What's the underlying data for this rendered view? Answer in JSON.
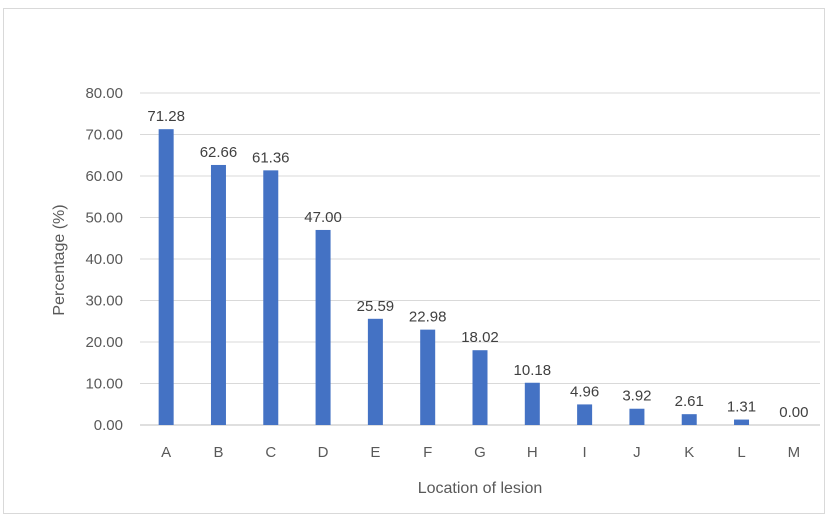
{
  "chart_data": {
    "type": "bar",
    "categories": [
      "A",
      "B",
      "C",
      "D",
      "E",
      "F",
      "G",
      "H",
      "I",
      "J",
      "K",
      "L",
      "M"
    ],
    "values": [
      71.28,
      62.66,
      61.36,
      47.0,
      25.59,
      22.98,
      18.02,
      10.18,
      4.96,
      3.92,
      2.61,
      1.31,
      0.0
    ],
    "data_labels": [
      "71.28",
      "62.66",
      "61.36",
      "47.00",
      "25.59",
      "22.98",
      "18.02",
      "10.18",
      "4.96",
      "3.92",
      "2.61",
      "1.31",
      "0.00"
    ],
    "xlabel": "Location of lesion",
    "ylabel": "Percentage (%)",
    "ylim": [
      0,
      80
    ],
    "yticks": [
      "0.00",
      "10.00",
      "20.00",
      "30.00",
      "40.00",
      "50.00",
      "60.00",
      "70.00",
      "80.00"
    ],
    "grid": true,
    "legend": "none",
    "colors": {
      "bar": "#4472c4",
      "grid": "#d9d9d9",
      "text": "#595959"
    }
  }
}
